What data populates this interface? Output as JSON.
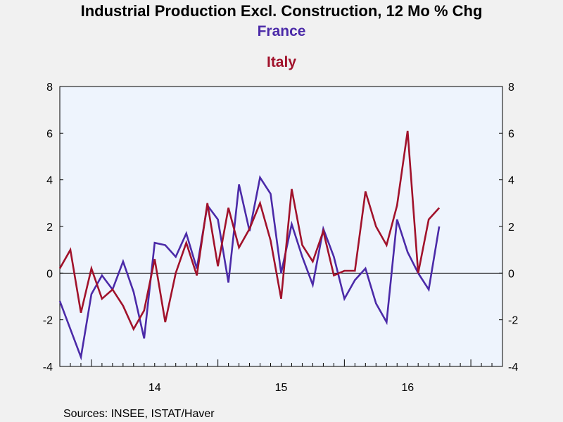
{
  "chart_data": {
    "type": "line",
    "title": "Industrial Production Excl. Construction, 12 Mo % Chg",
    "source": "Sources:  INSEE, ISTAT/Haver",
    "x_tick_labels": [
      "14",
      "15",
      "16"
    ],
    "months": [
      "2013-10",
      "2013-11",
      "2013-12",
      "2014-01",
      "2014-02",
      "2014-03",
      "2014-04",
      "2014-05",
      "2014-06",
      "2014-07",
      "2014-08",
      "2014-09",
      "2014-10",
      "2014-11",
      "2014-12",
      "2015-01",
      "2015-02",
      "2015-03",
      "2015-04",
      "2015-05",
      "2015-06",
      "2015-07",
      "2015-08",
      "2015-09",
      "2015-10",
      "2015-11",
      "2015-12",
      "2016-01",
      "2016-02",
      "2016-03",
      "2016-04",
      "2016-05",
      "2016-06",
      "2016-07",
      "2016-08",
      "2016-09",
      "2016-10",
      "2016-11",
      "2016-12",
      "2017-01",
      "2017-02",
      "2017-03"
    ],
    "ylim": [
      -4,
      8
    ],
    "yticks": [
      -4,
      -2,
      0,
      2,
      4,
      6,
      8
    ],
    "zero_line": true,
    "plot_background": "#eef4fd",
    "page_background": "#f1f1f1",
    "series": [
      {
        "name": "France",
        "color": "#4b2aa8",
        "values": [
          -1.2,
          -2.4,
          -3.6,
          -0.9,
          -0.1,
          -0.7,
          0.5,
          -0.8,
          -2.8,
          1.3,
          1.2,
          0.7,
          1.7,
          0.2,
          2.9,
          2.3,
          -0.4,
          3.8,
          1.8,
          4.1,
          3.4,
          0.0,
          2.1,
          0.7,
          -0.5,
          1.9,
          0.7,
          -1.1,
          -0.3,
          0.2,
          -1.3,
          -2.1,
          2.3,
          0.9,
          0.0,
          -0.7,
          2.0
        ]
      },
      {
        "name": "Italy",
        "color": "#a1122b",
        "values": [
          0.2,
          1.0,
          -1.7,
          0.2,
          -1.1,
          -0.7,
          -1.4,
          -2.4,
          -1.6,
          0.6,
          -2.1,
          0.0,
          1.3,
          -0.1,
          3.0,
          0.3,
          2.8,
          1.1,
          1.9,
          3.0,
          1.4,
          -1.1,
          3.6,
          1.2,
          0.5,
          1.8,
          -0.1,
          0.1,
          0.1,
          3.5,
          2.0,
          1.2,
          2.9,
          6.1,
          0.0,
          2.3,
          2.8
        ]
      }
    ]
  }
}
